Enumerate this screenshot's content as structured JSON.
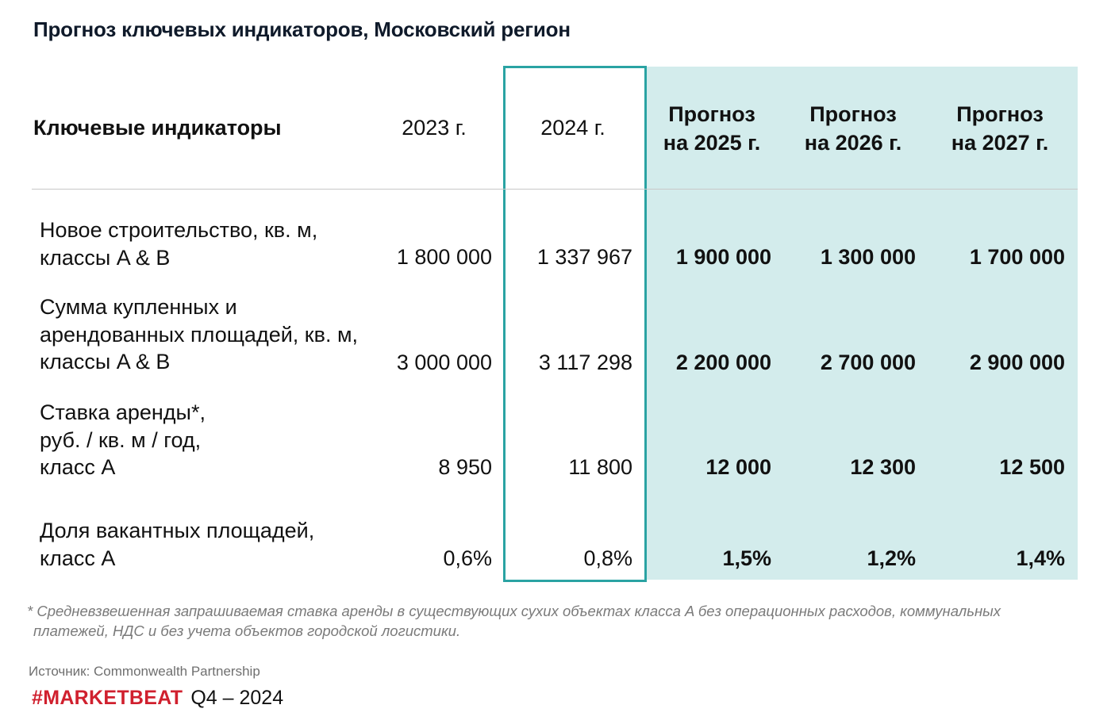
{
  "title": "Прогноз ключевых индикаторов, Московский регион",
  "table": {
    "header": {
      "label": "Ключевые индикаторы",
      "y2023": "2023 г.",
      "y2024": "2024 г.",
      "f2025_line1": "Прогноз",
      "f2025_line2": "на 2025 г.",
      "f2026_line1": "Прогноз",
      "f2026_line2": "на 2026 г.",
      "f2027_line1": "Прогноз",
      "f2027_line2": "на 2027 г."
    },
    "rows": [
      {
        "label_lines": [
          "Новое строительство, кв. м,",
          "классы A & B"
        ],
        "y2023": "1 800 000",
        "y2024": "1 337 967",
        "f2025": "1 900 000",
        "f2026": "1 300 000",
        "f2027": "1 700 000"
      },
      {
        "label_lines": [
          "Сумма купленных и",
          "арендованных площадей, кв. м,",
          "классы A & B"
        ],
        "y2023": "3 000 000",
        "y2024": "3 117 298",
        "f2025": "2 200 000",
        "f2026": "2 700 000",
        "f2027": "2 900 000"
      },
      {
        "label_lines": [
          "Ставка аренды*,",
          "руб. / кв. м / год,",
          "класс A"
        ],
        "y2023": "8 950",
        "y2024": "11 800",
        "f2025": "12 000",
        "f2026": "12 300",
        "f2027": "12 500"
      },
      {
        "label_lines": [
          "Доля вакантных площадей,",
          "класс A"
        ],
        "y2023": "0,6%",
        "y2024": "0,8%",
        "f2025": "1,5%",
        "f2026": "1,2%",
        "f2027": "1,4%"
      }
    ]
  },
  "footnote": {
    "line1": "* Средневзвешенная запрашиваемая ставка аренды в существующих сухих объектах класса A без операционных расходов, коммунальных",
    "line2": "платежей, НДС и без учета объектов городской логистики."
  },
  "source": "Источник: Commonwealth Partnership",
  "brand": {
    "name": "#MARKETBEAT",
    "period": "Q4  –  2024"
  },
  "colors": {
    "forecast_bg": "#d3ecec",
    "highlight_border": "#2aa3a3",
    "brand_red": "#d0202e"
  }
}
